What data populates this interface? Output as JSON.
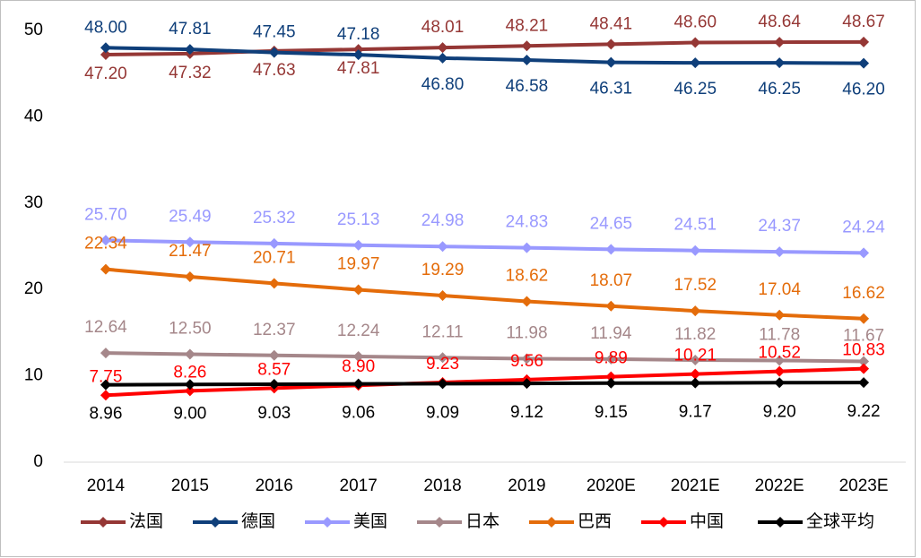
{
  "chart_data": {
    "type": "line",
    "categories": [
      "2014",
      "2015",
      "2016",
      "2017",
      "2018",
      "2019",
      "2020E",
      "2021E",
      "2022E",
      "2023E"
    ],
    "ylim": [
      0,
      50
    ],
    "yticks": [
      0,
      10,
      20,
      30,
      40,
      50
    ],
    "legend": "bottom",
    "series": [
      {
        "name": "法国",
        "color": "#953735",
        "values": [
          47.2,
          47.32,
          47.63,
          47.81,
          48.01,
          48.21,
          48.41,
          48.6,
          48.64,
          48.67
        ],
        "value_labels": [
          "47.20",
          "47.32",
          "47.63",
          "47.81",
          "48.01",
          "48.21",
          "48.41",
          "48.60",
          "48.64",
          "48.67"
        ]
      },
      {
        "name": "德国",
        "color": "#0f3f7a",
        "values": [
          48.0,
          47.81,
          47.45,
          47.18,
          46.8,
          46.58,
          46.31,
          46.25,
          46.25,
          46.2
        ],
        "value_labels": [
          "48.00",
          "47.81",
          "47.45",
          "47.18",
          "46.80",
          "46.58",
          "46.31",
          "46.25",
          "46.25",
          "46.20"
        ]
      },
      {
        "name": "美国",
        "color": "#9999ff",
        "values": [
          25.7,
          25.49,
          25.32,
          25.13,
          24.98,
          24.83,
          24.65,
          24.51,
          24.37,
          24.24
        ],
        "value_labels": [
          "25.70",
          "25.49",
          "25.32",
          "25.13",
          "24.98",
          "24.83",
          "24.65",
          "24.51",
          "24.37",
          "24.24"
        ]
      },
      {
        "name": "日本",
        "color": "#a5878a",
        "values": [
          12.64,
          12.5,
          12.37,
          12.24,
          12.11,
          11.98,
          11.94,
          11.82,
          11.78,
          11.67
        ],
        "value_labels": [
          "12.64",
          "12.50",
          "12.37",
          "12.24",
          "12.11",
          "11.98",
          "11.94",
          "11.82",
          "11.78",
          "11.67"
        ]
      },
      {
        "name": "巴西",
        "color": "#e46c0a",
        "values": [
          22.34,
          21.47,
          20.71,
          19.97,
          19.29,
          18.62,
          18.07,
          17.52,
          17.04,
          16.62
        ],
        "value_labels": [
          "22.34",
          "21.47",
          "20.71",
          "19.97",
          "19.29",
          "18.62",
          "18.07",
          "17.52",
          "17.04",
          "16.62"
        ]
      },
      {
        "name": "中国",
        "color": "#ff0000",
        "values": [
          7.75,
          8.26,
          8.57,
          8.9,
          9.23,
          9.56,
          9.89,
          10.21,
          10.52,
          10.83
        ],
        "value_labels": [
          "7.75",
          "8.26",
          "8.57",
          "8.90",
          "9.23",
          "9.56",
          "9.89",
          "10.21",
          "10.52",
          "10.83"
        ]
      },
      {
        "name": "全球平均",
        "color": "#000000",
        "values": [
          8.96,
          9.0,
          9.03,
          9.06,
          9.09,
          9.12,
          9.15,
          9.17,
          9.2,
          9.22
        ],
        "value_labels": [
          "8.96",
          "9.00",
          "9.03",
          "9.06",
          "9.09",
          "9.12",
          "9.15",
          "9.17",
          "9.20",
          "9.22"
        ]
      }
    ]
  }
}
